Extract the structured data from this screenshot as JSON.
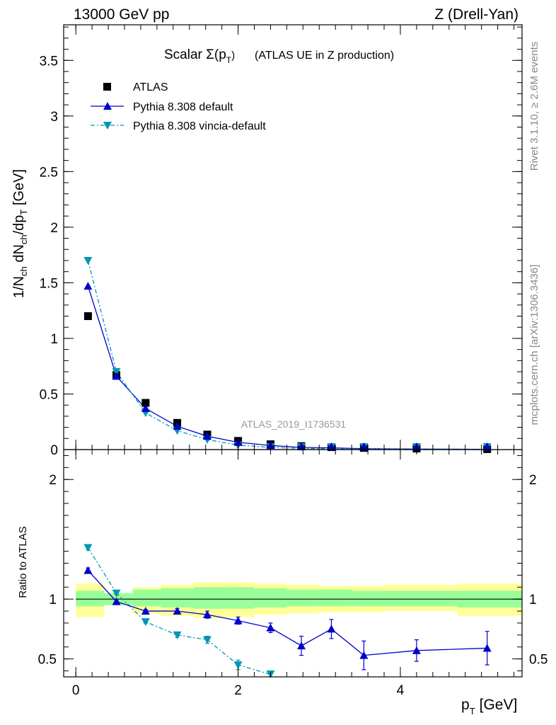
{
  "header": {
    "left": "13000 GeV pp",
    "right": "Z (Drell-Yan)"
  },
  "side_labels": {
    "rivet": "Rivet 3.1.10, ≥ 2.6M events",
    "mcplots": "mcplots.cern.ch [arXiv:1306.3436]"
  },
  "watermark": "ATLAS_2019_I1736531",
  "chart_data": {
    "type": "line",
    "title_main": "Scalar Σ(p",
    "title_sub": "T",
    "title_close": ")",
    "title_tail": "(ATLAS UE in Z production)",
    "xlabel_main": "p",
    "xlabel_sub": "T",
    "xlabel_unit": "[GeV]",
    "ylabel": "1/N_ch dN_ch/dp_T [GeV]",
    "ylabel_ratio": "Ratio to ATLAS",
    "xlim": [
      -0.15,
      5.5
    ],
    "ylim_main": [
      0,
      3.82
    ],
    "ylim_ratio": [
      0.35,
      2.25
    ],
    "x_ticks": [
      0,
      2,
      4
    ],
    "y_ticks_main": [
      0,
      0.5,
      1,
      1.5,
      2,
      2.5,
      3,
      3.5
    ],
    "y_ticks_ratio": [
      0.5,
      1,
      2
    ],
    "legend_position": "top-left",
    "x": [
      0.15,
      0.5,
      0.86,
      1.25,
      1.62,
      2.0,
      2.4,
      2.78,
      3.15,
      3.55,
      4.2,
      5.07
    ],
    "band_edges": [
      0,
      0.35,
      0.7,
      1.05,
      1.45,
      1.85,
      2.2,
      2.6,
      3.0,
      3.4,
      3.8,
      4.7,
      5.5
    ],
    "band_green": [
      [
        0.94,
        1.07
      ],
      [
        0.95,
        1.05
      ],
      [
        0.94,
        1.08
      ],
      [
        0.93,
        1.09
      ],
      [
        0.92,
        1.1
      ],
      [
        0.92,
        1.1
      ],
      [
        0.93,
        1.09
      ],
      [
        0.94,
        1.08
      ],
      [
        0.94,
        1.08
      ],
      [
        0.94,
        1.07
      ],
      [
        0.94,
        1.07
      ],
      [
        0.93,
        1.07
      ]
    ],
    "band_yellow": [
      [
        0.85,
        1.13
      ],
      [
        0.97,
        1.04
      ],
      [
        0.88,
        1.1
      ],
      [
        0.86,
        1.12
      ],
      [
        0.84,
        1.14
      ],
      [
        0.85,
        1.14
      ],
      [
        0.87,
        1.13
      ],
      [
        0.88,
        1.12
      ],
      [
        0.89,
        1.11
      ],
      [
        0.89,
        1.11
      ],
      [
        0.9,
        1.12
      ],
      [
        0.86,
        1.13
      ]
    ],
    "series": [
      {
        "name": "ATLAS",
        "color": "#000000",
        "marker": "square",
        "values": [
          1.2,
          0.67,
          0.42,
          0.24,
          0.135,
          0.078,
          0.048,
          0.031,
          0.022,
          0.015,
          0.009,
          0.004
        ]
      },
      {
        "name": "Pythia 8.308 default",
        "color": "#0000cc",
        "marker": "triangle-up",
        "values": [
          1.47,
          0.66,
          0.37,
          0.21,
          0.12,
          0.065,
          0.037,
          0.019,
          0.016,
          0.008,
          0.005,
          0.0025
        ],
        "ratio": [
          1.24,
          0.98,
          0.9,
          0.9,
          0.87,
          0.82,
          0.76,
          0.61,
          0.75,
          0.53,
          0.57,
          0.59
        ],
        "ratio_err": [
          0.02,
          0.01,
          0.01,
          0.02,
          0.03,
          0.03,
          0.04,
          0.08,
          0.08,
          0.12,
          0.09,
          0.14
        ]
      },
      {
        "name": "Pythia 8.308 vincia-default",
        "color": "#0096b4",
        "marker": "triangle-down",
        "values": [
          1.7,
          0.7,
          0.33,
          0.17,
          0.09,
          0.04,
          0.02,
          0.01,
          0.008,
          0.005,
          0.003,
          0.002
        ],
        "ratio": [
          1.43,
          1.05,
          0.81,
          0.7,
          0.66,
          0.45,
          0.37
        ],
        "ratio_err": [
          0.02,
          0.01,
          0.01,
          0.02,
          0.03,
          0.04,
          0.03
        ]
      }
    ]
  }
}
